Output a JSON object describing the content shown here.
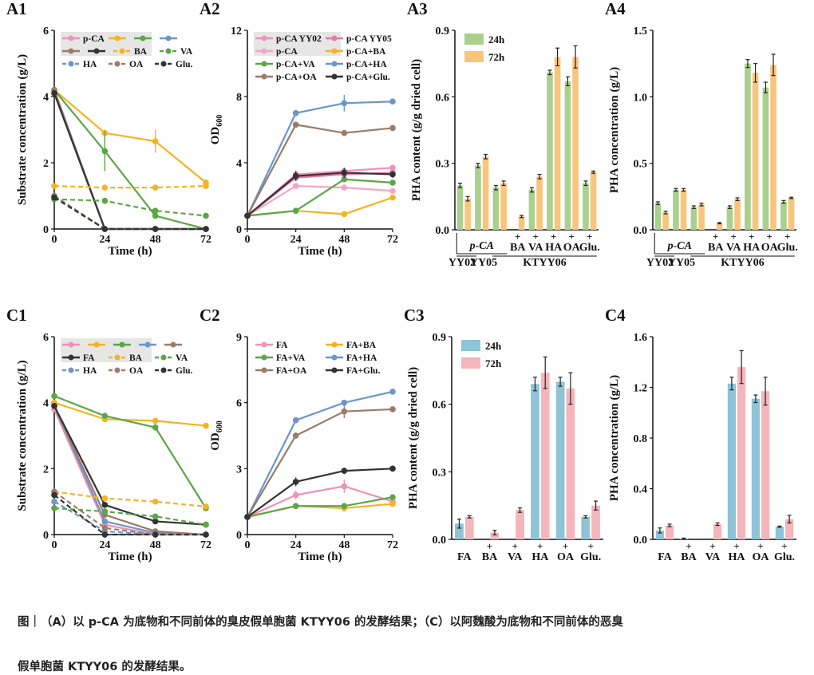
{
  "chart_data": [
    {
      "type": "line",
      "label": "A1",
      "xlabel": "Time (h)",
      "ylabel": "Substrate concentration (g/L)",
      "x": [
        0,
        24,
        48,
        72
      ],
      "xlim": [
        0,
        72
      ],
      "xticks": [
        0,
        24,
        48,
        72
      ],
      "ylim": [
        0,
        6
      ],
      "yticks": [
        0,
        2,
        4,
        6
      ],
      "legend_shade": true,
      "series": [
        {
          "name": "p-CA",
          "color": "#ef92b7",
          "dashed": false,
          "values": [
            4.2,
            0,
            0,
            0
          ]
        },
        {
          "color": "#f5b323",
          "dashed": false,
          "values": [
            4.2,
            2.9,
            2.65,
            1.4
          ],
          "errors": [
            0.05,
            0.1,
            0.35,
            0.1
          ]
        },
        {
          "color": "#5ba646",
          "dashed": false,
          "values": [
            4.2,
            2.35,
            0.4,
            0
          ],
          "errors": [
            0.05,
            0.6,
            0.05,
            0.02
          ]
        },
        {
          "color": "#6a97c9",
          "dashed": false,
          "values": [
            4.2,
            0,
            0,
            0
          ]
        },
        {
          "color": "#9b7b6b",
          "dashed": false,
          "values": [
            4.2,
            0,
            0,
            0
          ]
        },
        {
          "color": "#333333",
          "dashed": false,
          "values": [
            4.1,
            0,
            0,
            0
          ]
        },
        {
          "name": "BA",
          "color": "#f5b323",
          "dashed": true,
          "values": [
            1.3,
            1.25,
            1.25,
            1.3
          ]
        },
        {
          "name": "VA",
          "color": "#5ba646",
          "dashed": true,
          "values": [
            0.9,
            0.85,
            0.55,
            0.4
          ]
        },
        {
          "name": "HA",
          "color": "#6a97c9",
          "dashed": true,
          "values": [
            1.0,
            0,
            0,
            0
          ]
        },
        {
          "name": "OA",
          "color": "#9b7b6b",
          "dashed": true,
          "values": [
            1.0,
            0,
            0,
            0
          ]
        },
        {
          "name": "Glu.",
          "color": "#333333",
          "dashed": true,
          "values": [
            0.95,
            0,
            0,
            0
          ]
        }
      ]
    },
    {
      "type": "line",
      "label": "A2",
      "xlabel": "Time (h)",
      "ylabel": "OD",
      "ylabel_sub": "600",
      "x": [
        0,
        24,
        48,
        72
      ],
      "xlim": [
        0,
        72
      ],
      "xticks": [
        0,
        24,
        48,
        72
      ],
      "ylim": [
        0,
        12
      ],
      "yticks": [
        0,
        4,
        8,
        12
      ],
      "legend_shade": true,
      "series": [
        {
          "name": "p-CA YY02",
          "color": "#ef92b7",
          "dashed": false,
          "values": [
            0.8,
            3.3,
            3.5,
            3.7
          ]
        },
        {
          "name": "p-CA YY05",
          "color": "#e77aa8",
          "dashed": false,
          "values": [
            0.8,
            3.1,
            3.3,
            3.4
          ]
        },
        {
          "name": "p-CA",
          "color": "#f2a7c6",
          "dashed": false,
          "values": [
            0.8,
            2.6,
            2.5,
            2.3
          ]
        },
        {
          "name": "p-CA+BA",
          "color": "#f5b323",
          "dashed": false,
          "values": [
            0.8,
            1.1,
            0.9,
            1.9
          ]
        },
        {
          "name": "p-CA+VA",
          "color": "#5ba646",
          "dashed": false,
          "values": [
            0.8,
            1.1,
            3.0,
            2.8
          ]
        },
        {
          "name": "p-CA+HA",
          "color": "#6a97c9",
          "dashed": false,
          "values": [
            0.8,
            7.0,
            7.6,
            7.7
          ],
          "errors": [
            0.05,
            0.2,
            0.5,
            0.1
          ]
        },
        {
          "name": "p-CA+OA",
          "color": "#9b7b6b",
          "dashed": false,
          "values": [
            0.8,
            6.3,
            5.8,
            6.1
          ]
        },
        {
          "name": "p-CA+Glu.",
          "color": "#333333",
          "dashed": false,
          "values": [
            0.8,
            3.2,
            3.4,
            3.3
          ],
          "errors": [
            0.05,
            0.3,
            0.3,
            0.2
          ]
        }
      ]
    },
    {
      "type": "bar",
      "label": "A3",
      "ylabel": "PHA content (g/g dried cell)",
      "categories": [
        null,
        null,
        null,
        "BA",
        "VA",
        "HA",
        "OA",
        "Glu."
      ],
      "category_marks": [
        null,
        null,
        null,
        "+",
        "+",
        "+",
        "+",
        "+"
      ],
      "substrate_label": "p-CA",
      "strain_labels": [
        "YY02",
        "YY05",
        "KTYY06"
      ],
      "ylim": [
        0,
        0.9
      ],
      "yticks": [
        {
          "value": 0,
          "label": "0.0"
        },
        0.3,
        0.6,
        0.9
      ],
      "legend": true,
      "series": [
        {
          "name": "24h",
          "color": "#a9d18e",
          "values": [
            0.2,
            0.29,
            0.19,
            0,
            0.18,
            0.71,
            0.67,
            0.21
          ],
          "errors": [
            0.01,
            0.01,
            0.01,
            0,
            0.01,
            0.01,
            0.02,
            0.01
          ]
        },
        {
          "name": "72h",
          "color": "#f9c57c",
          "values": [
            0.14,
            0.33,
            0.21,
            0.06,
            0.24,
            0.78,
            0.78,
            0.26
          ],
          "errors": [
            0.01,
            0.01,
            0.01,
            0.005,
            0.01,
            0.04,
            0.05,
            0.005
          ]
        }
      ]
    },
    {
      "type": "bar",
      "label": "A4",
      "ylabel": "PHA concentration (g/L)",
      "categories": [
        null,
        null,
        null,
        "BA",
        "VA",
        "HA",
        "OA",
        "Glu."
      ],
      "category_marks": [
        null,
        null,
        null,
        "+",
        "+",
        "+",
        "+",
        "+"
      ],
      "substrate_label": "p-CA",
      "strain_labels": [
        "YY02",
        "YY05",
        "KTYY06"
      ],
      "ylim": [
        0,
        1.5
      ],
      "yticks": [
        {
          "value": 0,
          "label": "0.0"
        },
        0.5,
        {
          "value": 1,
          "label": "1.0"
        },
        1.5
      ],
      "legend": false,
      "series": [
        {
          "name": "24h",
          "color": "#a9d18e",
          "values": [
            0.2,
            0.3,
            0.17,
            0,
            0.17,
            1.25,
            1.07,
            0.21
          ],
          "errors": [
            0.01,
            0.01,
            0.01,
            0,
            0.01,
            0.03,
            0.04,
            0.01
          ]
        },
        {
          "name": "72h",
          "color": "#f9c57c",
          "values": [
            0.13,
            0.3,
            0.19,
            0.05,
            0.23,
            1.18,
            1.24,
            0.24
          ],
          "errors": [
            0.01,
            0.01,
            0.01,
            0.005,
            0.01,
            0.07,
            0.08,
            0.005
          ]
        }
      ]
    },
    {
      "type": "line",
      "label": "C1",
      "xlabel": "Time (h)",
      "ylabel": "Substrate concentration (g/L)",
      "x": [
        0,
        24,
        48,
        72
      ],
      "xlim": [
        0,
        72
      ],
      "xticks": [
        0,
        24,
        48,
        72
      ],
      "ylim": [
        0,
        6
      ],
      "yticks": [
        0,
        2,
        4,
        6
      ],
      "legend_shade": true,
      "series": [
        {
          "color": "#ef92b7",
          "dashed": false,
          "values": [
            3.8,
            0.3,
            0,
            0
          ]
        },
        {
          "color": "#f5b323",
          "dashed": false,
          "values": [
            4.0,
            3.5,
            3.45,
            3.3
          ]
        },
        {
          "color": "#5ba646",
          "dashed": false,
          "values": [
            4.2,
            3.6,
            3.25,
            0.8
          ],
          "errors": [
            0.05,
            0.05,
            0.1,
            0.05
          ]
        },
        {
          "color": "#6a97c9",
          "dashed": false,
          "values": [
            3.9,
            0.4,
            0.05,
            0
          ]
        },
        {
          "color": "#9b7b6b",
          "dashed": false,
          "values": [
            3.9,
            0.6,
            0.1,
            0
          ]
        },
        {
          "name": "FA",
          "color": "#333333",
          "dashed": false,
          "values": [
            3.9,
            0.9,
            0.4,
            0.3
          ]
        },
        {
          "name": "BA",
          "color": "#f5b323",
          "dashed": true,
          "values": [
            1.3,
            1.1,
            1.0,
            0.85
          ]
        },
        {
          "name": "VA",
          "color": "#5ba646",
          "dashed": true,
          "values": [
            0.8,
            0.7,
            0.55,
            0.3
          ]
        },
        {
          "name": "HA",
          "color": "#6a97c9",
          "dashed": true,
          "values": [
            1.0,
            0.1,
            0,
            0
          ]
        },
        {
          "name": "OA",
          "color": "#9b7b6b",
          "dashed": true,
          "values": [
            1.3,
            0.2,
            0,
            0
          ]
        },
        {
          "name": "Glu.",
          "color": "#333333",
          "dashed": true,
          "values": [
            1.2,
            0,
            0,
            0
          ]
        }
      ]
    },
    {
      "type": "line",
      "label": "C2",
      "xlabel": "Time (h)",
      "ylabel": "OD",
      "ylabel_sub": "600",
      "x": [
        0,
        24,
        48,
        72
      ],
      "xlim": [
        0,
        72
      ],
      "xticks": [
        0,
        24,
        48,
        72
      ],
      "ylim": [
        0,
        9
      ],
      "yticks": [
        0,
        3,
        6,
        9
      ],
      "legend_shade": false,
      "series": [
        {
          "name": "FA",
          "color": "#ef92b7",
          "dashed": false,
          "values": [
            0.8,
            1.8,
            2.2,
            1.5
          ],
          "errors": [
            0.05,
            0.2,
            0.3,
            0.1
          ]
        },
        {
          "name": "FA+BA",
          "color": "#f5b323",
          "dashed": false,
          "values": [
            0.8,
            1.3,
            1.2,
            1.4
          ]
        },
        {
          "name": "FA+VA",
          "color": "#5ba646",
          "dashed": false,
          "values": [
            0.8,
            1.3,
            1.3,
            1.7
          ]
        },
        {
          "name": "FA+HA",
          "color": "#6a97c9",
          "dashed": false,
          "values": [
            0.8,
            5.2,
            6.0,
            6.5
          ]
        },
        {
          "name": "FA+OA",
          "color": "#9b7b6b",
          "dashed": false,
          "values": [
            0.8,
            4.5,
            5.6,
            5.7
          ],
          "errors": [
            0.05,
            0.15,
            0.3,
            0.1
          ]
        },
        {
          "name": "FA+Glu.",
          "color": "#333333",
          "dashed": false,
          "values": [
            0.8,
            2.4,
            2.9,
            3.0
          ],
          "errors": [
            0.05,
            0.2,
            0.15,
            0.1
          ]
        }
      ]
    },
    {
      "type": "bar",
      "label": "C3",
      "ylabel": "PHA content (g/g dried cell)",
      "categories": [
        "FA",
        "BA",
        "VA",
        "HA",
        "OA",
        "Glu."
      ],
      "category_marks": [
        null,
        "+",
        "+",
        "+",
        "+",
        "+"
      ],
      "ylim": [
        0,
        0.9
      ],
      "yticks": [
        {
          "value": 0,
          "label": "0.0"
        },
        0.3,
        0.6,
        0.9
      ],
      "legend": true,
      "series": [
        {
          "name": "24h",
          "color": "#8fc3d6",
          "values": [
            0.07,
            0,
            0,
            0.69,
            0.7,
            0.1
          ],
          "errors": [
            0.02,
            0,
            0,
            0.03,
            0.02,
            0.005
          ]
        },
        {
          "name": "72h",
          "color": "#f4b6bb",
          "values": [
            0.1,
            0.03,
            0.13,
            0.74,
            0.67,
            0.15
          ],
          "errors": [
            0.005,
            0.01,
            0.01,
            0.07,
            0.07,
            0.02
          ]
        }
      ]
    },
    {
      "type": "bar",
      "label": "C4",
      "ylabel": "PHA concentration (g/L)",
      "categories": [
        "FA",
        "BA",
        "VA",
        "HA",
        "OA",
        "Glu."
      ],
      "category_marks": [
        null,
        "+",
        "+",
        "+",
        "+",
        "+"
      ],
      "ylim": [
        0,
        1.6
      ],
      "yticks": [
        {
          "value": 0,
          "label": "0.0"
        },
        0.4,
        0.8,
        1.2,
        1.6
      ],
      "legend": false,
      "series": [
        {
          "name": "24h",
          "color": "#8fc3d6",
          "values": [
            0.07,
            0.005,
            0,
            1.23,
            1.11,
            0.1
          ],
          "errors": [
            0.02,
            0.005,
            0,
            0.05,
            0.03,
            0.005
          ]
        },
        {
          "name": "72h",
          "color": "#f4b6bb",
          "values": [
            0.11,
            0,
            0.12,
            1.36,
            1.17,
            0.16
          ],
          "errors": [
            0.01,
            0,
            0.01,
            0.13,
            0.11,
            0.03
          ]
        }
      ]
    }
  ],
  "caption_lines": [
    "图｜（A）以 p-CA 为底物和不同前体的臭皮假单胞菌 KTYY06 的发酵结果；（C）以阿魏酸为底物和不同前体的恶臭",
    "假单胞菌 KTYY06 的发酵结果。"
  ]
}
